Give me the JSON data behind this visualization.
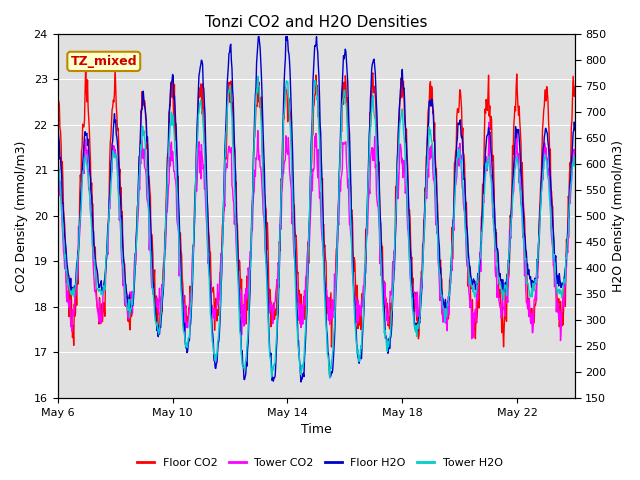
{
  "title": "Tonzi CO2 and H2O Densities",
  "xlabel": "Time",
  "ylabel_left": "CO2 Density (mmol/m3)",
  "ylabel_right": "H2O Density (mmol/m3)",
  "co2_ylim": [
    16.0,
    24.0
  ],
  "h2o_ylim": [
    150,
    850
  ],
  "x_ticks_labels": [
    "May 6",
    "May 10",
    "May 14",
    "May 18",
    "May 22"
  ],
  "x_ticks_pos": [
    0,
    4,
    8,
    12,
    16
  ],
  "annotation_text": "TZ_mixed",
  "annotation_color": "#cc0000",
  "annotation_bg": "#ffffcc",
  "annotation_border": "#bb8800",
  "floor_co2_color": "#ff0000",
  "tower_co2_color": "#ff00ff",
  "floor_h2o_color": "#0000cc",
  "tower_h2o_color": "#00cccc",
  "bg_color": "#e0e0e0",
  "line_width": 1.0,
  "title_fontsize": 11,
  "axis_fontsize": 9,
  "tick_fontsize": 8,
  "legend_fontsize": 8,
  "n_days": 18,
  "pts_per_day": 48
}
